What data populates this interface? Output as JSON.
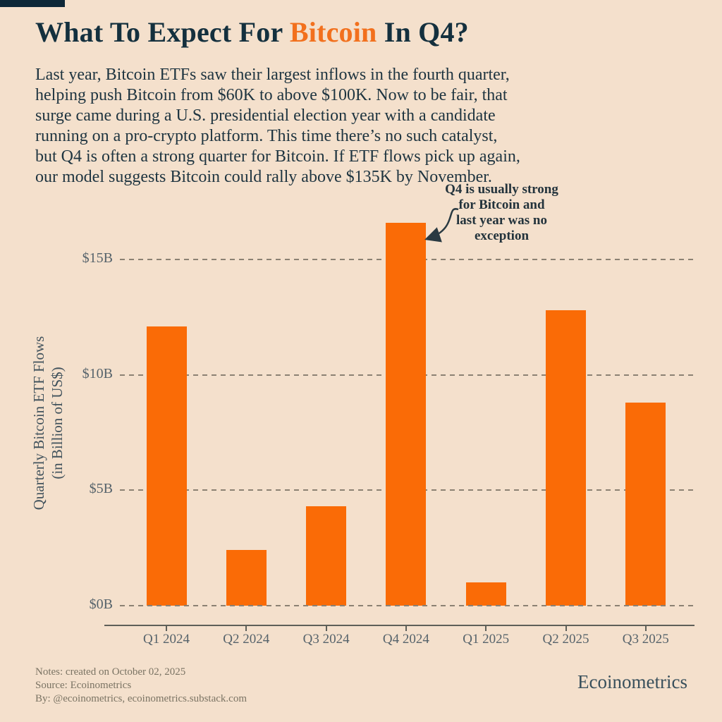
{
  "title": {
    "prefix": "What To Expect For ",
    "highlight": "Bitcoin",
    "suffix": " In Q4?"
  },
  "intro": "Last year, Bitcoin ETFs saw their largest inflows in the fourth quarter,\nhelping push Bitcoin from $60K to above $100K. Now to be fair, that\nsurge came during a U.S. presidential election year with a candidate\nrunning on a pro-crypto platform. This time there’s no such catalyst,\nbut Q4 is often a strong quarter for Bitcoin. If ETF flows pick up again,\nour model suggests Bitcoin could rally above $135K by November.",
  "chart_data": {
    "type": "bar",
    "title": "What To Expect For Bitcoin In Q4?",
    "categories": [
      "Q1 2024",
      "Q2 2024",
      "Q3 2024",
      "Q4 2024",
      "Q1 2025",
      "Q2 2025",
      "Q3 2025"
    ],
    "values": [
      12.1,
      2.4,
      4.3,
      16.6,
      1.0,
      12.8,
      8.8
    ],
    "unit": "billion USD",
    "ylabel": "Quarterly Bitcoin ETF Flows\n(in Billion of US$)",
    "xlabel": "",
    "ytick_values": [
      0,
      5,
      10,
      15
    ],
    "ytick_labels": [
      "$0B",
      "$5B",
      "$10B",
      "$15B"
    ],
    "ylim": [
      0,
      17.5
    ],
    "grid": "horizontal dashed",
    "legend": "none",
    "bar_color": "#FA6B06",
    "annotation_text": "Q4 is usually strong\nfor Bitcoin and\nlast year was no\nexception",
    "annotation_target": "Q4 2024"
  },
  "footer": {
    "notes": [
      "Notes: created on October 02, 2025",
      "Source: Ecoinometrics",
      "By: @ecoinometrics, ecoinometrics.substack.com"
    ],
    "brand": "Ecoinometrics"
  },
  "colors": {
    "background": "#F4E0CC",
    "title_navy": "#14303E",
    "accent_orange": "#F2701D",
    "bar_orange": "#FA6B06",
    "grid_gray": "#8B8173",
    "tick_text": "#56636B",
    "corner_accent": "#0E2838"
  }
}
